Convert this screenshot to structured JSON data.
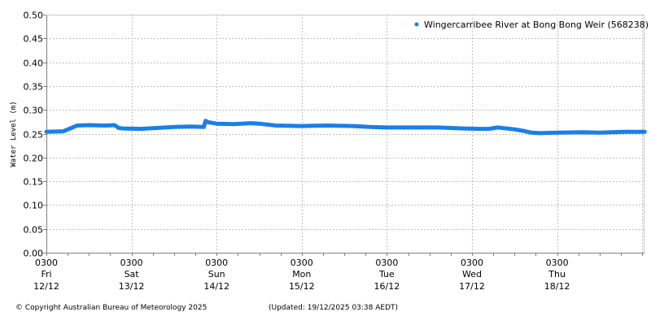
{
  "footer": {
    "copyright": "© Copyright Australian Bureau of Meteorology 2025",
    "updated": "(Updated: 19/12/2025 03:38 AEDT)"
  },
  "colors": {
    "series": "#1a7fe8",
    "axis": "#808080",
    "grid": "#c0c0c0"
  },
  "chart_data": {
    "type": "line",
    "title": "",
    "ylabel": "Water Level (m)",
    "xlabel": "",
    "ylim": [
      0.0,
      0.5
    ],
    "yticks": [
      "0.00",
      "0.05",
      "0.10",
      "0.15",
      "0.20",
      "0.25",
      "0.30",
      "0.35",
      "0.40",
      "0.45",
      "0.50"
    ],
    "grid": true,
    "legend_position": "top-right",
    "x_ticks": [
      {
        "time": "0300",
        "day": "Fri",
        "date": "12/12"
      },
      {
        "time": "0300",
        "day": "Sat",
        "date": "13/12"
      },
      {
        "time": "0300",
        "day": "Sun",
        "date": "14/12"
      },
      {
        "time": "0300",
        "day": "Mon",
        "date": "15/12"
      },
      {
        "time": "0300",
        "day": "Tue",
        "date": "16/12"
      },
      {
        "time": "0300",
        "day": "Wed",
        "date": "17/12"
      },
      {
        "time": "0300",
        "day": "Thu",
        "date": "18/12"
      }
    ],
    "x_unit": "days since Fri 12/12 03:00",
    "xlim": [
      0,
      7.03
    ],
    "series": [
      {
        "name": "Wingercarribee River at Bong Bong Weir (568238)",
        "x": [
          0,
          0.2,
          0.28,
          0.36,
          0.5,
          0.7,
          0.8,
          0.85,
          0.9,
          1.1,
          1.3,
          1.5,
          1.7,
          1.85,
          1.87,
          1.9,
          2.0,
          2.2,
          2.4,
          2.5,
          2.7,
          3.0,
          3.3,
          3.6,
          3.8,
          4.0,
          4.3,
          4.6,
          4.9,
          5.1,
          5.2,
          5.3,
          5.5,
          5.6,
          5.7,
          5.8,
          6.0,
          6.3,
          6.5,
          6.8,
          7.03
        ],
        "values": [
          0.254,
          0.255,
          0.261,
          0.267,
          0.268,
          0.267,
          0.268,
          0.262,
          0.261,
          0.26,
          0.262,
          0.264,
          0.265,
          0.264,
          0.277,
          0.274,
          0.271,
          0.27,
          0.272,
          0.271,
          0.267,
          0.266,
          0.267,
          0.266,
          0.264,
          0.263,
          0.263,
          0.263,
          0.261,
          0.26,
          0.26,
          0.263,
          0.259,
          0.256,
          0.252,
          0.251,
          0.252,
          0.253,
          0.252,
          0.254,
          0.254
        ]
      }
    ]
  }
}
